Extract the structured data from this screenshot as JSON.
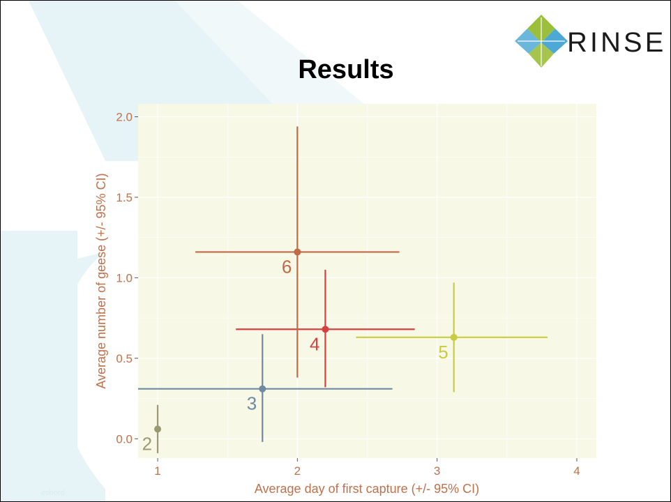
{
  "slide": {
    "title": "Results",
    "brand": "RINSE",
    "footer_text": "esbord"
  },
  "colors": {
    "panel_bg": "#f8f8e6",
    "grid": "#ffffff",
    "axis_text": "#c0704a",
    "deco": "#e6f4f8"
  },
  "chart_data": {
    "type": "scatter",
    "title": "",
    "xlabel": "Average day of first capture (+/- 95% CI)",
    "ylabel": "Average number of geese (+/- 95% CI)",
    "xlim": [
      0.86,
      4.14
    ],
    "ylim": [
      -0.12,
      2.08
    ],
    "x_ticks": [
      1,
      2,
      3,
      4
    ],
    "y_ticks": [
      "0.0",
      "0.5",
      "1.0",
      "1.5",
      "2.0"
    ],
    "grid": true,
    "error_bars": "95% CI",
    "points": [
      {
        "label": "2",
        "x": 1.0,
        "y": 0.06,
        "x_lo": 1.0,
        "x_hi": 1.0,
        "y_lo": -0.09,
        "y_hi": 0.21,
        "color": "#9a9a72"
      },
      {
        "label": "3",
        "x": 1.75,
        "y": 0.31,
        "x_lo": 0.86,
        "x_hi": 2.68,
        "y_lo": -0.02,
        "y_hi": 0.65,
        "color": "#6e8aa2"
      },
      {
        "label": "4",
        "x": 2.2,
        "y": 0.68,
        "x_lo": 1.56,
        "x_hi": 2.84,
        "y_lo": 0.32,
        "y_hi": 1.05,
        "color": "#d84040"
      },
      {
        "label": "5",
        "x": 3.12,
        "y": 0.63,
        "x_lo": 2.42,
        "x_hi": 3.79,
        "y_lo": 0.29,
        "y_hi": 0.97,
        "color": "#c8cc40"
      },
      {
        "label": "6",
        "x": 2.0,
        "y": 1.16,
        "x_lo": 1.27,
        "x_hi": 2.73,
        "y_lo": 0.38,
        "y_hi": 1.94,
        "color": "#c06a48"
      }
    ]
  }
}
